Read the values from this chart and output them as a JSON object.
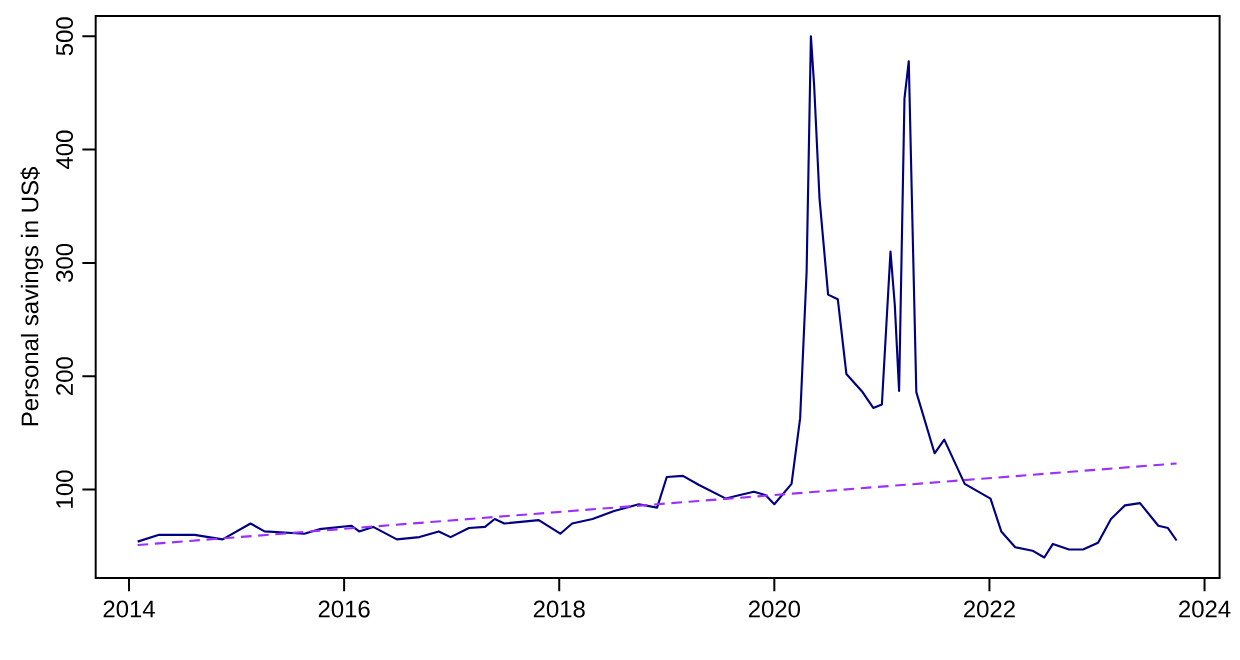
{
  "chart_data": {
    "type": "line",
    "ylabel": "Personal savings in US$",
    "xlim": [
      2013.69,
      2024.14
    ],
    "ylim": [
      22,
      518
    ],
    "xticks": [
      2014,
      2016,
      2018,
      2020,
      2022,
      2024
    ],
    "yticks": [
      100,
      200,
      300,
      400,
      500
    ],
    "series": [
      {
        "color": "#000080",
        "line_style": "solid",
        "x": [
          2014.08,
          2014.28,
          2014.61,
          2014.87,
          2015.13,
          2015.26,
          2015.63,
          2015.77,
          2016.07,
          2016.14,
          2016.27,
          2016.49,
          2016.7,
          2016.88,
          2016.99,
          2017.16,
          2017.31,
          2017.4,
          2017.49,
          2017.81,
          2018.01,
          2018.12,
          2018.31,
          2018.51,
          2018.74,
          2018.91,
          2019.0,
          2019.15,
          2019.3,
          2019.55,
          2019.67,
          2019.81,
          2019.92,
          2020.0,
          2020.16,
          2020.24,
          2020.3,
          2020.34,
          2020.37,
          2020.42,
          2020.5,
          2020.59,
          2020.67,
          2020.82,
          2020.92,
          2021.0,
          2021.08,
          2021.12,
          2021.16,
          2021.21,
          2021.25,
          2021.32,
          2021.49,
          2021.58,
          2021.77,
          2022.01,
          2022.11,
          2022.24,
          2022.4,
          2022.51,
          2022.59,
          2022.74,
          2022.87,
          2023.01,
          2023.13,
          2023.26,
          2023.4,
          2023.57,
          2023.66,
          2023.74
        ],
        "values": [
          54,
          60,
          60,
          56,
          70,
          63,
          61,
          65,
          68,
          63,
          67,
          56,
          58,
          63,
          58,
          66,
          67,
          74,
          70,
          73,
          61,
          70,
          74,
          81,
          87,
          84,
          111,
          112,
          104,
          92,
          95,
          98,
          95,
          87,
          105,
          163,
          292,
          500,
          457,
          357,
          272,
          268,
          202,
          186,
          172,
          175,
          310,
          263,
          187,
          445,
          478,
          186,
          132,
          144,
          105,
          92,
          63,
          49,
          46,
          40,
          52,
          47,
          47,
          53,
          74,
          86,
          88,
          68,
          66,
          55
        ]
      },
      {
        "color": "#9b30ff",
        "line_style": "dashed",
        "x": [
          2014.08,
          2023.74
        ],
        "values": [
          51,
          123
        ]
      }
    ]
  }
}
